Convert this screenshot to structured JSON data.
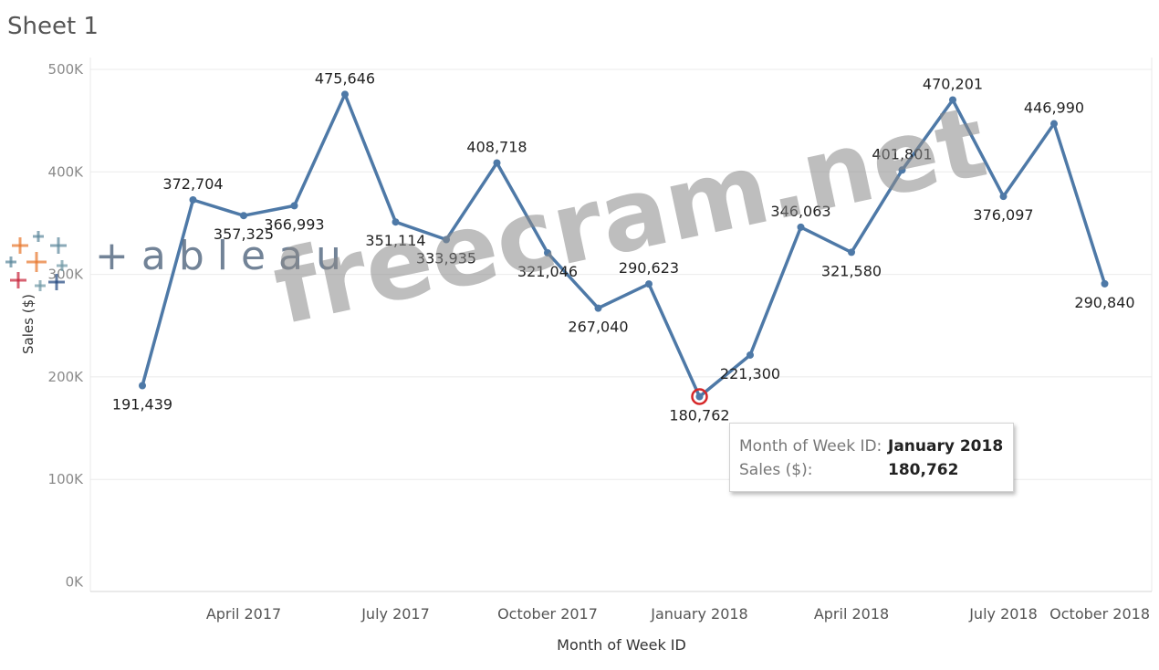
{
  "sheet": {
    "title": "Sheet 1"
  },
  "chart_data": {
    "type": "line",
    "title": "",
    "xlabel": "Month of Week ID",
    "ylabel": "Sales ($)",
    "ylim": [
      0,
      500000
    ],
    "yticks": [
      "0K",
      "100K",
      "200K",
      "300K",
      "400K",
      "500K"
    ],
    "xticks": [
      "April 2017",
      "July 2017",
      "October 2017",
      "January 2018",
      "April 2018",
      "July 2018",
      "October 2018"
    ],
    "grid": true,
    "series": [
      {
        "color": "#4e79a7",
        "x": [
          "2017-02",
          "2017-03",
          "2017-04",
          "2017-05",
          "2017-06",
          "2017-07",
          "2017-08",
          "2017-09",
          "2017-10",
          "2017-11",
          "2017-12",
          "2018-01",
          "2018-02",
          "2018-03",
          "2018-04",
          "2018-05",
          "2018-06",
          "2018-07",
          "2018-08",
          "2018-09"
        ],
        "values": [
          191439,
          372704,
          357325,
          366993,
          475646,
          351114,
          333935,
          408718,
          321046,
          267040,
          290623,
          180762,
          221300,
          346063,
          321580,
          401801,
          470201,
          376097,
          446990,
          290840
        ],
        "labels": [
          "191,439",
          "372,704",
          "357,325",
          "366,993",
          "475,646",
          "351,114",
          "333,935",
          "408,718",
          "321,046",
          "267,040",
          "290,623",
          "180,762",
          "221,300",
          "346,063",
          "321,580",
          "401,801",
          "470,201",
          "376,097",
          "446,990",
          "290,840"
        ]
      }
    ],
    "highlight_color": "#d62728"
  },
  "tooltip": {
    "field1_label": "Month of Week ID:",
    "field1_value": "January 2018",
    "field2_label": "Sales ($):",
    "field2_value": "180,762"
  },
  "logo": {
    "text": "+ableau",
    "mark_colors": [
      "#e8762b",
      "#5b879b",
      "#c72037",
      "#1f457e",
      "#59879b",
      "#7099a6"
    ]
  },
  "watermark": {
    "text": "freecram.net"
  }
}
